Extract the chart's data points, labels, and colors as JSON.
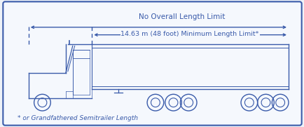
{
  "fig_width": 4.35,
  "fig_height": 1.81,
  "dpi": 100,
  "bg_color": "#eef2f8",
  "border_color": "#3a5baa",
  "truck_color": "#3a5baa",
  "title_text": "No Overall Length Limit",
  "dim_text": "14.63 m (48 foot) Minimum Length Limit*",
  "footnote_text": "* or Grandfathered Semitrailer Length",
  "title_fontsize": 7.5,
  "dim_fontsize": 6.8,
  "footnote_fontsize": 6.5,
  "inner_bg": "#f5f8fd"
}
